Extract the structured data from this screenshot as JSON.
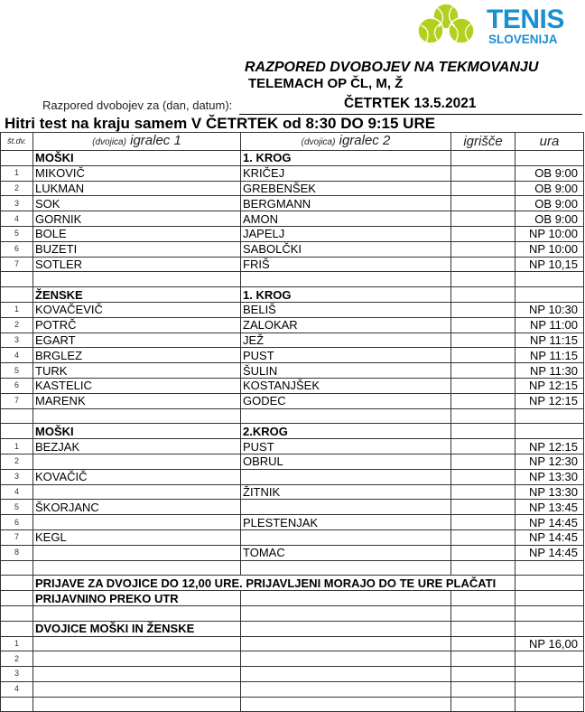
{
  "logo": {
    "line1": "TENIS",
    "line2": "SLOVENIJA",
    "ball_color": "#b5cf1f",
    "text_color": "#1b8fd0"
  },
  "title": "RAZPORED DVOBOJEV NA TEKMOVANJU",
  "tournament": "TELEMACH OP ČL, M, Ž",
  "date_label": "Razpored dvobojev za (dan, datum):",
  "date_value": "ČETRTEK 13.5.2021",
  "subtitle": "Hitri test na kraju samem V ČETRTEK od 8:30 DO 9:15 URE",
  "columns": {
    "num": "št.dv.",
    "p1_prefix": "(dvojica)",
    "p1": "igralec 1",
    "p2_prefix": "(dvojica)",
    "p2": "igralec 2",
    "court": "igrišče",
    "time": "ura"
  },
  "rows": [
    {
      "type": "section",
      "p1": "MOŠKI",
      "p2": "1. KROG"
    },
    {
      "num": "1",
      "p1": "MIKOVIČ",
      "p2": "KRIČEJ",
      "time": "OB 9:00"
    },
    {
      "num": "2",
      "p1": "LUKMAN",
      "p2": "GREBENŠEK",
      "time": "OB 9:00"
    },
    {
      "num": "3",
      "p1": "SOK",
      "p2": "BERGMANN",
      "time": "OB 9:00"
    },
    {
      "num": "4",
      "p1": "GORNIK",
      "p2": "AMON",
      "time": "OB 9:00"
    },
    {
      "num": "5",
      "p1": "BOLE",
      "p2": "JAPELJ",
      "time": "NP 10:00"
    },
    {
      "num": "6",
      "p1": "BUZETI",
      "p2": "SABOLČKI",
      "time": "NP 10:00"
    },
    {
      "num": "7",
      "p1": "SOTLER",
      "p2": "FRIŠ",
      "time": "NP 10,15"
    },
    {},
    {
      "type": "section",
      "p1": "ŽENSKE",
      "p2": "1. KROG"
    },
    {
      "num": "1",
      "p1": "KOVAČEVIČ",
      "p2": "BELIŠ",
      "time": "NP 10:30"
    },
    {
      "num": "2",
      "p1": "POTRČ",
      "p2": "ZALOKAR",
      "time": "NP 11:00"
    },
    {
      "num": "3",
      "p1": "EGART",
      "p2": "JEŽ",
      "time": "NP 11:15"
    },
    {
      "num": "4",
      "p1": "BRGLEZ",
      "p2": "PUST",
      "time": "NP 11:15"
    },
    {
      "num": "5",
      "p1": "TURK",
      "p2": "ŠULIN",
      "time": "NP 11:30"
    },
    {
      "num": "6",
      "p1": "KASTELIC",
      "p2": "KOSTANJŠEK",
      "time": "NP 12:15"
    },
    {
      "num": "7",
      "p1": "MARENK",
      "p2": "GODEC",
      "time": "NP 12:15"
    },
    {},
    {
      "type": "section",
      "p1": "MOŠKI",
      "p2": "2.KROG"
    },
    {
      "num": "1",
      "p1": "BEZJAK",
      "p2": "PUST",
      "time": "NP 12:15"
    },
    {
      "num": "2",
      "p1": "",
      "p2": "OBRUL",
      "time": "NP 12:30"
    },
    {
      "num": "3",
      "p1": "KOVAČIČ",
      "p2": "",
      "time": "NP 13:30"
    },
    {
      "num": "4",
      "p1": "",
      "p2": "ŽITNIK",
      "time": "NP 13:30"
    },
    {
      "num": "5",
      "p1": "ŠKORJANC",
      "p2": "",
      "time": "NP 13:45"
    },
    {
      "num": "6",
      "p1": "",
      "p2": "PLESTENJAK",
      "time": "NP 14:45"
    },
    {
      "num": "7",
      "p1": "KEGL",
      "p2": "",
      "time": "NP 14:45"
    },
    {
      "num": "8",
      "p1": "",
      "p2": "TOMAC",
      "time": "NP 14:45"
    },
    {},
    {
      "type": "note",
      "p1": "PRIJAVE ZA DVOJICE DO 12,00 URE. PRIJAVLJENI MORAJO DO TE URE PLAČATI"
    },
    {
      "type": "section",
      "p1": "PRIJAVNINO PREKO UTR"
    },
    {},
    {
      "type": "section",
      "p1": "DVOJICE MOŠKI IN ŽENSKE"
    },
    {
      "num": "1",
      "time": "NP 16,00"
    },
    {
      "num": "2"
    },
    {
      "num": "3"
    },
    {
      "num": "4"
    },
    {}
  ]
}
